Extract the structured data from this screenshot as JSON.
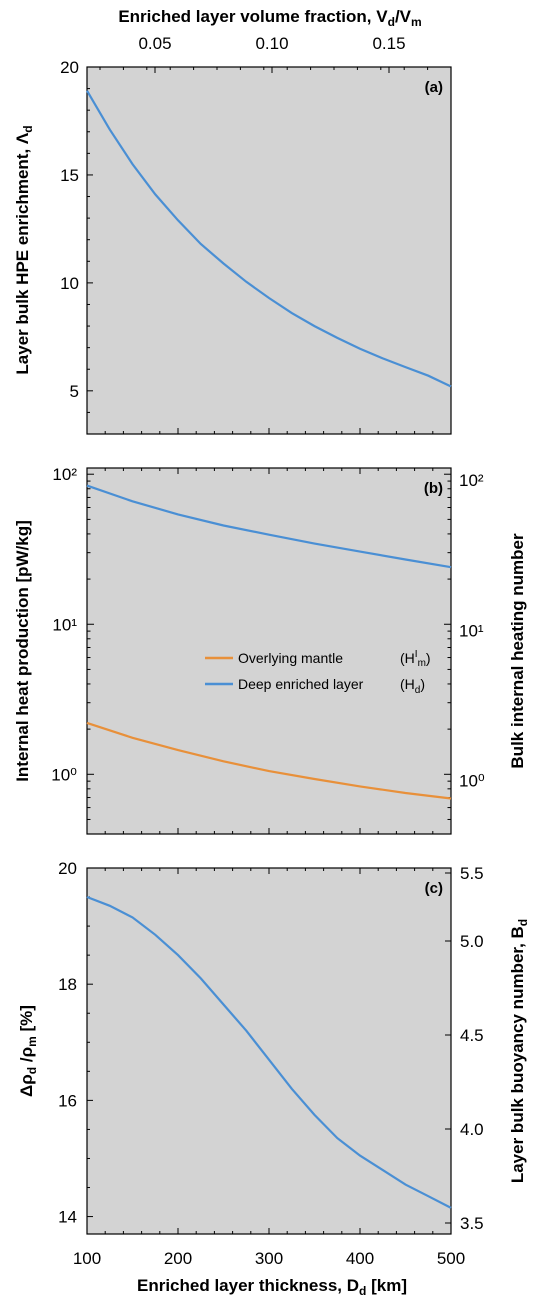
{
  "chart_data": [
    {
      "panel": "(a)",
      "type": "line",
      "xlabel": "Enriched layer thickness, D_d [km]",
      "xlim": [
        100,
        500
      ],
      "ylabel": "Layer bulk HPE enrichment, Λ_d",
      "ylim": [
        3,
        20
      ],
      "yticks": [
        5,
        10,
        15,
        20
      ],
      "top_xlabel": "Enriched layer volume fraction, V_d/V_m",
      "top_xticks": [
        0.05,
        0.1,
        0.15
      ],
      "series": [
        {
          "color": "#4a8fd4",
          "x": [
            100,
            125,
            150,
            175,
            200,
            225,
            250,
            275,
            300,
            325,
            350,
            375,
            400,
            425,
            450,
            475,
            500
          ],
          "y": [
            18.9,
            17.1,
            15.5,
            14.1,
            12.9,
            11.8,
            10.9,
            10.05,
            9.3,
            8.6,
            8.0,
            7.45,
            6.95,
            6.5,
            6.1,
            5.7,
            5.2
          ]
        }
      ]
    },
    {
      "panel": "(b)",
      "type": "line",
      "yscale": "log",
      "ylabel": "Internal heat production [pW/kg]",
      "ylim": [
        0.4,
        110
      ],
      "yticks": [
        "10⁰",
        "10¹",
        "10²"
      ],
      "right_ylabel": "Bulk internal heating number",
      "right_yticks": [
        "10⁰",
        "10¹",
        "10²"
      ],
      "legend_position": "center",
      "series": [
        {
          "name": "Overlying mantle",
          "legend_symbol": "(Hᴵm)",
          "color": "#e8903a",
          "x": [
            100,
            150,
            200,
            250,
            300,
            350,
            400,
            450,
            500
          ],
          "y": [
            2.2,
            1.75,
            1.45,
            1.22,
            1.05,
            0.93,
            0.83,
            0.75,
            0.69
          ]
        },
        {
          "name": "Deep enriched layer",
          "legend_symbol": "(Hd)",
          "color": "#4a8fd4",
          "x": [
            100,
            150,
            200,
            250,
            300,
            350,
            400,
            450,
            500
          ],
          "y": [
            84,
            66,
            54,
            45.5,
            39.5,
            34.5,
            30.5,
            27,
            24
          ]
        }
      ]
    },
    {
      "panel": "(c)",
      "type": "line",
      "xlabel": "Enriched layer thickness, D_d [km]",
      "xlim": [
        100,
        500
      ],
      "xticks": [
        100,
        200,
        300,
        400,
        500
      ],
      "ylabel": "Δρ_d /ρ_m [%]",
      "ylim": [
        13.7,
        20
      ],
      "yticks": [
        14,
        16,
        18,
        20
      ],
      "right_ylabel": "Layer bulk buoyancy number, B_d",
      "right_yticks": [
        3.5,
        4.0,
        4.5,
        5.0,
        5.5
      ],
      "series": [
        {
          "color": "#4a8fd4",
          "x": [
            100,
            125,
            150,
            175,
            200,
            225,
            250,
            275,
            300,
            325,
            350,
            375,
            400,
            425,
            450,
            475,
            500
          ],
          "y": [
            19.5,
            19.35,
            19.15,
            18.85,
            18.5,
            18.1,
            17.65,
            17.2,
            16.7,
            16.2,
            15.75,
            15.35,
            15.05,
            14.8,
            14.55,
            14.35,
            14.15
          ]
        }
      ]
    }
  ]
}
